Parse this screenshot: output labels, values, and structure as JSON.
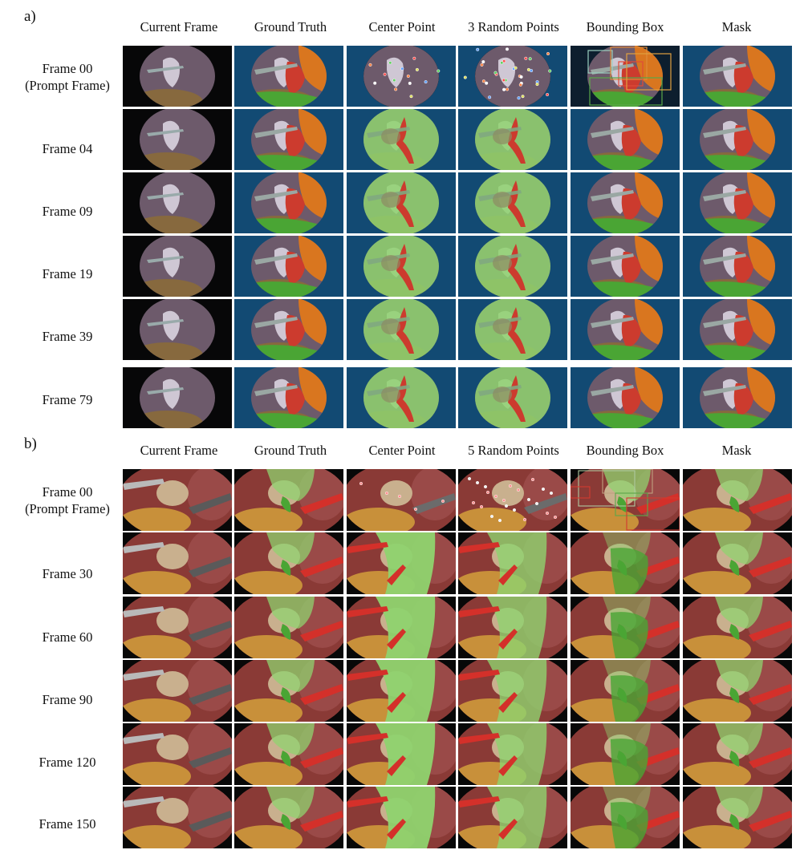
{
  "panels": [
    {
      "letter": "a)",
      "columns": [
        "Current Frame",
        "Ground Truth",
        "Center Point",
        "3 Random Points",
        "Bounding Box",
        "Mask"
      ],
      "rows": [
        {
          "label": "Frame 00",
          "sublabel": "(Prompt Frame)"
        },
        {
          "label": "Frame 04",
          "sublabel": ""
        },
        {
          "label": "Frame 09",
          "sublabel": ""
        },
        {
          "label": "Frame 19",
          "sublabel": ""
        },
        {
          "label": "Frame 39",
          "sublabel": ""
        },
        {
          "label": "Frame 79",
          "sublabel": ""
        }
      ]
    },
    {
      "letter": "b)",
      "columns": [
        "Current Frame",
        "Ground Truth",
        "Center Point",
        "5 Random Points",
        "Bounding Box",
        "Mask"
      ],
      "rows": [
        {
          "label": "Frame 00",
          "sublabel": "(Prompt Frame)"
        },
        {
          "label": "Frame 30",
          "sublabel": ""
        },
        {
          "label": "Frame 60",
          "sublabel": ""
        },
        {
          "label": "Frame 90",
          "sublabel": ""
        },
        {
          "label": "Frame 120",
          "sublabel": ""
        },
        {
          "label": "Frame 150",
          "sublabel": ""
        }
      ]
    }
  ],
  "colors": {
    "tissue_purple": "#6d5a6b",
    "mask_orange": "#d9761f",
    "mask_red": "#cc3b2e",
    "mask_green": "#4aa534",
    "mask_light_green": "#8fd36f",
    "tool_gray": "#9aa7a3",
    "background_blue": "#124a73",
    "liver_red": "#8a3a36",
    "fat_yellow": "#c8903a"
  }
}
